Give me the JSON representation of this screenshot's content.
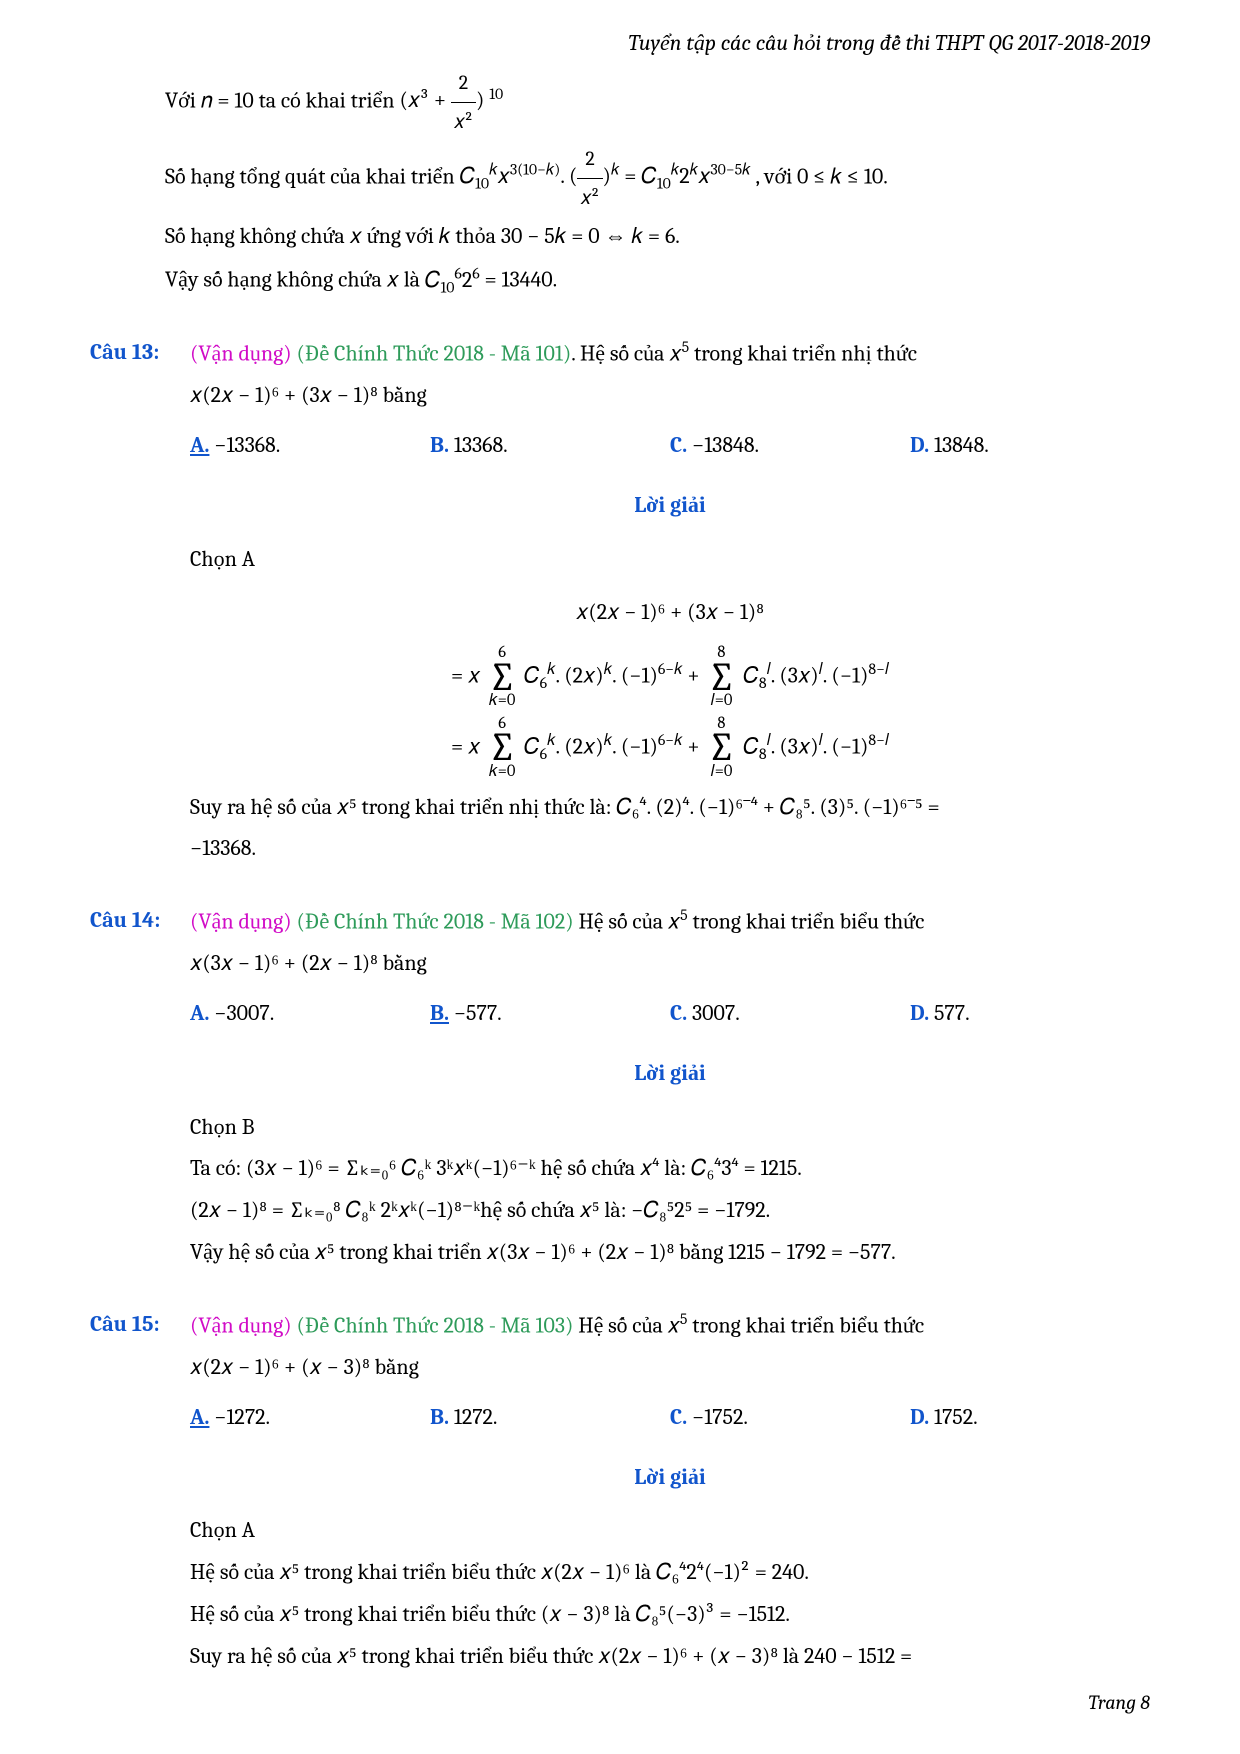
{
  "header": "Tuyển tập các câu hỏi trong đề thi THPT QG 2017-2018-2019",
  "intro_lines": [
    "Với 𝑛 = 10 ta có khai triển ",
    "Số hạng tổng quát của khai triển ",
    "Số hạng không chứa 𝑥 ứng với 𝑘 thỏa 30 − 5𝑘 = 0 ⇔ 𝑘 = 6.",
    "Vậy số hạng không chứa 𝑥 là "
  ],
  "intro_math1_post": "10",
  "intro_math2_post": ", với 0 ≤ 𝑘 ≤ 10.",
  "intro_math4": " = 13440.",
  "q13": {
    "label": "Câu 13:",
    "level": "(Vận dụng)",
    "source": "(Đề Chính Thức 2018 - Mã 101)",
    "text1": ". Hệ số của 𝑥",
    "text2": " trong khai triển nhị thức",
    "eq": "𝑥(2𝑥 − 1)⁶ + (3𝑥 − 1)⁸ bằng",
    "opts": {
      "A": "−13368.",
      "B": "13368.",
      "C": "−13848.",
      "D": "13848."
    },
    "correct": "A",
    "loigiai": "Lời giải",
    "chon": "Chọn A",
    "d1": "𝑥(2𝑥 − 1)⁶ + (3𝑥 − 1)⁸",
    "concl1": "Suy ra hệ số của 𝑥⁵ trong khai triển nhị thức là: 𝐶₆⁴. (2)⁴. (−1)⁶⁻⁴ + 𝐶₈⁵. (3)⁵. (−1)⁶⁻⁵ =",
    "concl2": "−13368."
  },
  "q14": {
    "label": "Câu 14:",
    "level": "(Vận dụng)",
    "source": "(Đề Chính Thức 2018 - Mã 102)",
    "text1": " Hệ số của 𝑥",
    "text2": " trong khai triển biểu thức",
    "eq": "𝑥(3𝑥 − 1)⁶ + (2𝑥 − 1)⁸ bằng",
    "opts": {
      "A": "−3007.",
      "B": "−577.",
      "C": "3007.",
      "D": "577."
    },
    "correct": "B",
    "loigiai": "Lời giải",
    "chon": "Chọn B",
    "l1": "Ta có: (3𝑥 − 1)⁶ = ∑ₖ₌₀⁶ 𝐶₆ᵏ 3ᵏ𝑥ᵏ(−1)⁶⁻ᵏ hệ số chứa 𝑥⁴ là: 𝐶₆⁴3⁴ = 1215.",
    "l2": "(2𝑥 − 1)⁸ = ∑ₖ₌₀⁸ 𝐶₈ᵏ 2ᵏ𝑥ᵏ(−1)⁸⁻ᵏhệ số chứa 𝑥⁵ là: −𝐶₈⁵2⁵ = −1792.",
    "l3": "Vậy hệ số của 𝑥⁵ trong khai triển 𝑥(3𝑥 − 1)⁶ + (2𝑥 − 1)⁸ bằng 1215 − 1792 = −577."
  },
  "q15": {
    "label": "Câu 15:",
    "level": "(Vận dụng)",
    "source": "(Đề Chính Thức 2018 - Mã 103)",
    "text1": " Hệ số của 𝑥",
    "text2": " trong khai triển biểu thức",
    "eq": "𝑥(2𝑥 − 1)⁶ + (𝑥 − 3)⁸ bằng",
    "opts": {
      "A": "−1272.",
      "B": "1272.",
      "C": "−1752.",
      "D": "1752."
    },
    "correct": "A",
    "loigiai": "Lời giải",
    "chon": "Chọn A",
    "l1": "Hệ số của 𝑥⁵ trong khai triển biểu thức 𝑥(2𝑥 − 1)⁶ là 𝐶₆⁴2⁴(−1)² = 240.",
    "l2": "Hệ số của 𝑥⁵ trong khai triển biểu thức (𝑥 − 3)⁸ là 𝐶₈⁵(−3)³ = −1512.",
    "l3": "Suy ra hệ số của 𝑥⁵ trong khai triển biểu thức 𝑥(2𝑥 − 1)⁶ + (𝑥 − 3)⁸ là 240 − 1512 ="
  },
  "footer": "Trang 8"
}
